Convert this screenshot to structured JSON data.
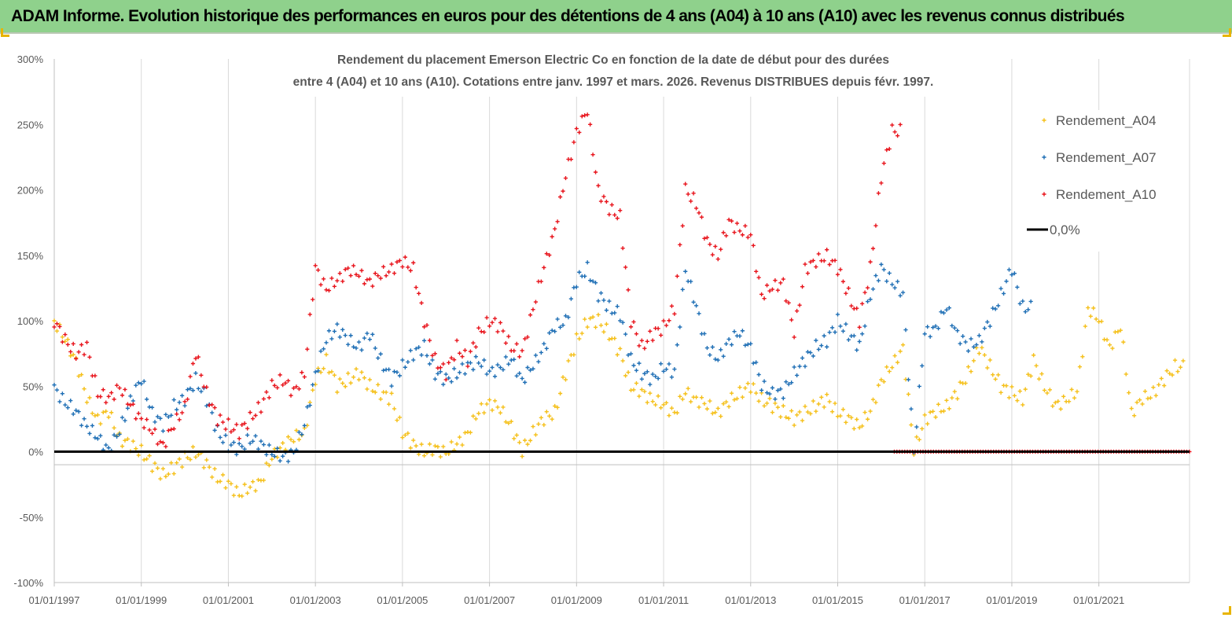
{
  "banner": {
    "title": "ADAM Informe. Evolution historique des performances en euros pour des détentions de 4 ans (A04) à 10 ans (A10) avec les revenus connus distribués"
  },
  "colors": {
    "banner_bg": "#8fd18c",
    "A04": "#f5c01a",
    "A07": "#1f6fb5",
    "A10": "#e8141c",
    "zero_line": "#000000"
  },
  "chart_data": {
    "type": "scatter",
    "title_line1": "Rendement du placement Emerson Electric Co en fonction de la date de début pour des durées",
    "title_line2": "entre 4 (A04) et 10 ans (A10).  Cotations entre janv. 1997 et mars. 2026. Revenus DISTRIBUES depuis févr. 1997.",
    "xlabel": "",
    "ylabel": "",
    "x_ticks": [
      "01/01/1997",
      "01/01/1999",
      "01/01/2001",
      "01/01/2003",
      "01/01/2005",
      "01/01/2007",
      "01/01/2009",
      "01/01/2011",
      "01/01/2013",
      "01/01/2015",
      "01/01/2017",
      "01/01/2019",
      "01/01/2021"
    ],
    "x_range": [
      "1997-01-01",
      "2023-02-01"
    ],
    "y_ticks": [
      "300%",
      "250%",
      "200%",
      "150%",
      "100%",
      "50%",
      "0%",
      "-50%",
      "-100%"
    ],
    "ylim": [
      -100,
      300
    ],
    "grid": "vertical",
    "legend_position": "top-right",
    "marker": "+",
    "series": [
      {
        "name": "Rendement_A04",
        "x": [
          "1997-01",
          "1997-04",
          "1997-07",
          "1997-10",
          "1998-01",
          "1998-04",
          "1998-07",
          "1998-10",
          "1999-01",
          "1999-04",
          "1999-07",
          "1999-10",
          "2000-01",
          "2000-04",
          "2000-07",
          "2000-10",
          "2001-01",
          "2001-04",
          "2001-07",
          "2001-10",
          "2002-01",
          "2002-04",
          "2002-07",
          "2002-10",
          "2003-01",
          "2003-04",
          "2003-07",
          "2003-10",
          "2004-01",
          "2004-04",
          "2004-07",
          "2004-10",
          "2005-01",
          "2005-04",
          "2005-07",
          "2005-10",
          "2006-01",
          "2006-04",
          "2006-07",
          "2006-10",
          "2007-01",
          "2007-04",
          "2007-07",
          "2007-10",
          "2008-01",
          "2008-04",
          "2008-07",
          "2008-10",
          "2009-01",
          "2009-04",
          "2009-07",
          "2009-10",
          "2010-01",
          "2010-04",
          "2010-07",
          "2010-10",
          "2011-01",
          "2011-04",
          "2011-07",
          "2011-10",
          "2012-01",
          "2012-04",
          "2012-07",
          "2012-10",
          "2013-01",
          "2013-04",
          "2013-07",
          "2013-10",
          "2014-01",
          "2014-04",
          "2014-07",
          "2014-10",
          "2015-01",
          "2015-04",
          "2015-07",
          "2015-10",
          "2016-01",
          "2016-04",
          "2016-07",
          "2016-10",
          "2017-01",
          "2017-04",
          "2017-07",
          "2017-10",
          "2018-01",
          "2018-04",
          "2018-07",
          "2018-10",
          "2019-01",
          "2019-04",
          "2019-07",
          "2019-10",
          "2020-01",
          "2020-04",
          "2020-07",
          "2020-10",
          "2021-01",
          "2021-04",
          "2021-07",
          "2021-10",
          "2022-01",
          "2022-04",
          "2022-07",
          "2022-10"
        ],
        "values": [
          100,
          85,
          70,
          40,
          25,
          30,
          10,
          5,
          0,
          -10,
          -18,
          -12,
          -5,
          0,
          -10,
          -20,
          -25,
          -32,
          -28,
          -22,
          -5,
          5,
          10,
          15,
          55,
          70,
          50,
          55,
          60,
          50,
          45,
          40,
          15,
          5,
          0,
          2,
          0,
          5,
          15,
          30,
          38,
          32,
          20,
          0,
          15,
          25,
          30,
          60,
          85,
          100,
          100,
          90,
          75,
          50,
          45,
          40,
          35,
          30,
          45,
          40,
          35,
          30,
          38,
          45,
          50,
          40,
          35,
          30,
          25,
          30,
          35,
          40,
          30,
          25,
          20,
          30,
          55,
          65,
          80,
          0,
          25,
          30,
          35,
          45,
          60,
          80,
          65,
          50,
          45,
          40,
          70,
          50,
          35,
          40,
          45,
          110,
          100,
          80,
          95,
          30,
          40,
          45,
          55,
          65
        ]
      },
      {
        "name": "Rendement_A07",
        "x": [
          "1997-01",
          "1997-04",
          "1997-07",
          "1997-10",
          "1998-01",
          "1998-04",
          "1998-07",
          "1998-10",
          "1999-01",
          "1999-04",
          "1999-07",
          "1999-10",
          "2000-01",
          "2000-04",
          "2000-07",
          "2000-10",
          "2001-01",
          "2001-04",
          "2001-07",
          "2001-10",
          "2002-01",
          "2002-04",
          "2002-07",
          "2002-10",
          "2003-01",
          "2003-04",
          "2003-07",
          "2003-10",
          "2004-01",
          "2004-04",
          "2004-07",
          "2004-10",
          "2005-01",
          "2005-04",
          "2005-07",
          "2005-10",
          "2006-01",
          "2006-04",
          "2006-07",
          "2006-10",
          "2007-01",
          "2007-04",
          "2007-07",
          "2007-10",
          "2008-01",
          "2008-04",
          "2008-07",
          "2008-10",
          "2009-01",
          "2009-04",
          "2009-07",
          "2009-10",
          "2010-01",
          "2010-04",
          "2010-07",
          "2010-10",
          "2011-01",
          "2011-04",
          "2011-07",
          "2011-10",
          "2012-01",
          "2012-04",
          "2012-07",
          "2012-10",
          "2013-01",
          "2013-04",
          "2013-07",
          "2013-10",
          "2014-01",
          "2014-04",
          "2014-07",
          "2014-10",
          "2015-01",
          "2015-04",
          "2015-07",
          "2015-10",
          "2016-01",
          "2016-04",
          "2016-07",
          "2016-10",
          "2017-01",
          "2017-04",
          "2017-07",
          "2017-10",
          "2018-01",
          "2018-04",
          "2018-07",
          "2018-10",
          "2019-01",
          "2019-04"
        ],
        "values": [
          48,
          38,
          30,
          20,
          10,
          2,
          15,
          40,
          55,
          30,
          20,
          35,
          40,
          55,
          40,
          15,
          5,
          2,
          10,
          5,
          0,
          -5,
          0,
          20,
          60,
          85,
          95,
          85,
          80,
          90,
          70,
          55,
          65,
          75,
          80,
          60,
          55,
          60,
          65,
          70,
          60,
          65,
          70,
          55,
          65,
          80,
          95,
          100,
          130,
          140,
          120,
          110,
          105,
          70,
          60,
          55,
          65,
          60,
          140,
          110,
          80,
          70,
          85,
          90,
          80,
          50,
          45,
          45,
          60,
          70,
          80,
          85,
          100,
          90,
          80,
          120,
          140,
          130,
          120,
          0,
          90,
          95,
          110,
          90,
          80,
          85,
          100,
          120,
          140,
          110
        ]
      },
      {
        "name": "Rendement_A10",
        "x": [
          "1997-01",
          "1997-04",
          "1997-07",
          "1997-10",
          "1998-01",
          "1998-04",
          "1998-07",
          "1998-10",
          "1999-01",
          "1999-04",
          "1999-07",
          "1999-10",
          "2000-01",
          "2000-04",
          "2000-07",
          "2000-10",
          "2001-01",
          "2001-04",
          "2001-07",
          "2001-10",
          "2002-01",
          "2002-04",
          "2002-07",
          "2002-10",
          "2003-01",
          "2003-04",
          "2003-07",
          "2003-10",
          "2004-01",
          "2004-04",
          "2004-07",
          "2004-10",
          "2005-01",
          "2005-04",
          "2005-07",
          "2005-10",
          "2006-01",
          "2006-04",
          "2006-07",
          "2006-10",
          "2007-01",
          "2007-04",
          "2007-07",
          "2007-10",
          "2008-01",
          "2008-04",
          "2008-07",
          "2008-10",
          "2009-01",
          "2009-04",
          "2009-07",
          "2009-10",
          "2010-01",
          "2010-04",
          "2010-07",
          "2010-10",
          "2011-01",
          "2011-04",
          "2011-07",
          "2011-10",
          "2012-01",
          "2012-04",
          "2012-07",
          "2012-10",
          "2013-01",
          "2013-04",
          "2013-07",
          "2013-10",
          "2014-01",
          "2014-04",
          "2014-07",
          "2014-10",
          "2015-01",
          "2015-04",
          "2015-07",
          "2015-10",
          "2016-01",
          "2016-04"
        ],
        "values": [
          100,
          85,
          75,
          80,
          45,
          40,
          50,
          35,
          25,
          15,
          5,
          20,
          35,
          75,
          45,
          25,
          20,
          15,
          25,
          35,
          50,
          55,
          45,
          60,
          140,
          125,
          130,
          140,
          135,
          130,
          135,
          140,
          145,
          140,
          100,
          70,
          60,
          80,
          70,
          90,
          100,
          95,
          80,
          75,
          110,
          140,
          170,
          210,
          245,
          260,
          200,
          185,
          180,
          100,
          80,
          90,
          95,
          110,
          200,
          190,
          160,
          150,
          175,
          170,
          165,
          120,
          125,
          130,
          90,
          140,
          145,
          150,
          140,
          120,
          100,
          140,
          210,
          245
        ]
      },
      {
        "name": "0,0%",
        "x": [
          "1997-01",
          "2023-02"
        ],
        "values": [
          0,
          0
        ]
      }
    ]
  }
}
